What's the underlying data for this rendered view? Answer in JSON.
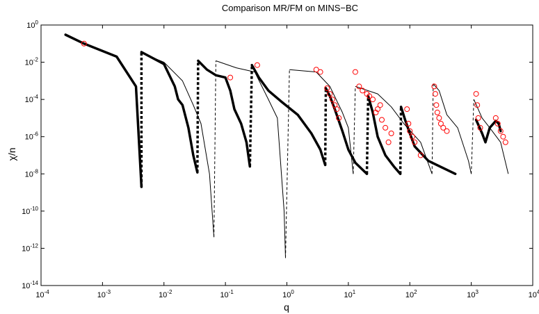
{
  "chart_data": {
    "type": "line",
    "title": "Comparison MR/FM on MINS−BC",
    "xlabel": "q",
    "ylabel": "χ/n",
    "xscale": "log",
    "yscale": "log",
    "xlim": [
      0.0001,
      10000
    ],
    "ylim": [
      1e-14,
      1
    ],
    "grid": false,
    "x_ticks": [
      {
        "v": 0.0001,
        "m": "10",
        "e": "-4"
      },
      {
        "v": 0.001,
        "m": "10",
        "e": "-3"
      },
      {
        "v": 0.01,
        "m": "10",
        "e": "-2"
      },
      {
        "v": 0.1,
        "m": "10",
        "e": "-1"
      },
      {
        "v": 1,
        "m": "10",
        "e": "0"
      },
      {
        "v": 10,
        "m": "10",
        "e": "1"
      },
      {
        "v": 100,
        "m": "10",
        "e": "2"
      },
      {
        "v": 1000,
        "m": "10",
        "e": "3"
      },
      {
        "v": 10000,
        "m": "10",
        "e": "4"
      }
    ],
    "y_ticks": [
      {
        "v": 1,
        "m": "10",
        "e": "0"
      },
      {
        "v": 0.01,
        "m": "10",
        "e": "-2"
      },
      {
        "v": 0.0001,
        "m": "10",
        "e": "-4"
      },
      {
        "v": 1e-06,
        "m": "10",
        "e": "-6"
      },
      {
        "v": 1e-08,
        "m": "10",
        "e": "-8"
      },
      {
        "v": 1e-10,
        "m": "10",
        "e": "-10"
      },
      {
        "v": 1e-12,
        "m": "10",
        "e": "-12"
      },
      {
        "v": 1e-14,
        "m": "10",
        "e": "-14"
      }
    ],
    "colors": {
      "axis": "#000000",
      "series": "#000000",
      "marker": "#ff0000"
    },
    "thick_segments": [
      [
        [
          0.00025,
          0.3
        ],
        [
          0.0005,
          0.1
        ],
        [
          0.0017,
          0.02
        ],
        [
          0.0035,
          0.0005
        ],
        [
          0.0043,
          2e-09
        ]
      ],
      [
        [
          0.0043,
          0.035
        ],
        [
          0.01,
          0.008
        ],
        [
          0.015,
          0.0005
        ],
        [
          0.017,
          0.0001
        ],
        [
          0.02,
          5e-05
        ],
        [
          0.025,
          3e-06
        ],
        [
          0.03,
          1e-07
        ],
        [
          0.035,
          1.2e-08
        ]
      ],
      [
        [
          0.036,
          0.012
        ],
        [
          0.05,
          0.004
        ],
        [
          0.07,
          0.002
        ],
        [
          0.1,
          0.0015
        ],
        [
          0.12,
          0.0003
        ],
        [
          0.14,
          3e-05
        ],
        [
          0.18,
          5e-06
        ],
        [
          0.22,
          5e-07
        ],
        [
          0.25,
          2.5e-08
        ]
      ],
      [
        [
          0.27,
          0.007
        ],
        [
          0.35,
          0.0015
        ],
        [
          0.5,
          0.0003
        ],
        [
          0.8,
          8e-05
        ],
        [
          1.5,
          1.5e-05
        ],
        [
          2.5,
          1.5e-06
        ],
        [
          3.5,
          2e-07
        ],
        [
          4.2,
          3e-08
        ]
      ],
      [
        [
          4.3,
          0.0004
        ],
        [
          5,
          0.00015
        ],
        [
          6,
          3e-05
        ],
        [
          8,
          2e-06
        ],
        [
          10,
          2e-07
        ],
        [
          13,
          4e-08
        ],
        [
          20,
          1e-08
        ]
      ],
      [
        [
          21,
          0.00015
        ],
        [
          25,
          2e-05
        ],
        [
          30,
          1e-06
        ],
        [
          40,
          1e-07
        ],
        [
          55,
          2.5e-08
        ],
        [
          70,
          1e-08
        ]
      ],
      [
        [
          72,
          4e-05
        ],
        [
          85,
          7e-06
        ],
        [
          100,
          1.5e-06
        ],
        [
          120,
          3e-07
        ],
        [
          200,
          5e-08
        ],
        [
          550,
          1e-08
        ]
      ],
      [
        [
          1200,
          8e-06
        ],
        [
          1500,
          1.5e-06
        ],
        [
          1700,
          5e-07
        ],
        [
          2000,
          3e-06
        ],
        [
          2500,
          7e-06
        ],
        [
          2800,
          5e-06
        ],
        [
          3000,
          2e-06
        ]
      ]
    ],
    "thin_segments": [
      [
        [
          0.0045,
          0.03
        ],
        [
          0.01,
          0.01
        ],
        [
          0.02,
          0.001
        ],
        [
          0.03,
          5e-05
        ],
        [
          0.04,
          5e-06
        ],
        [
          0.055,
          1e-08
        ],
        [
          0.065,
          4e-12
        ]
      ],
      [
        [
          0.07,
          0.012
        ],
        [
          0.15,
          0.005
        ],
        [
          0.3,
          0.003
        ],
        [
          0.5,
          0.0001
        ],
        [
          0.7,
          1e-05
        ],
        [
          0.9,
          1e-10
        ],
        [
          0.95,
          3e-13
        ]
      ],
      [
        [
          1.1,
          0.004
        ],
        [
          3,
          0.003
        ],
        [
          5,
          0.0005
        ],
        [
          8,
          2e-05
        ],
        [
          10,
          3e-06
        ],
        [
          12,
          1e-08
        ]
      ],
      [
        [
          13,
          0.0005
        ],
        [
          30,
          0.0002
        ],
        [
          50,
          4e-05
        ],
        [
          80,
          5e-06
        ],
        [
          150,
          5e-07
        ],
        [
          230,
          1e-08
        ]
      ],
      [
        [
          240,
          0.0007
        ],
        [
          300,
          0.0003
        ],
        [
          400,
          1.5e-05
        ],
        [
          600,
          3e-06
        ],
        [
          900,
          5e-08
        ],
        [
          1000,
          1e-08
        ]
      ],
      [
        [
          1100,
          0.0001
        ],
        [
          1500,
          1e-05
        ],
        [
          2000,
          3e-06
        ],
        [
          3000,
          5e-07
        ],
        [
          4000,
          1e-08
        ]
      ]
    ],
    "dotted_connectors": [
      [
        [
          0.0043,
          2e-09
        ],
        [
          0.0043,
          0.035
        ]
      ],
      [
        [
          0.035,
          1.2e-08
        ],
        [
          0.036,
          0.012
        ]
      ],
      [
        [
          0.25,
          2.5e-08
        ],
        [
          0.27,
          0.007
        ]
      ],
      [
        [
          4.2,
          3e-08
        ],
        [
          4.3,
          0.0004
        ]
      ],
      [
        [
          20,
          1e-08
        ],
        [
          21,
          0.00015
        ]
      ],
      [
        [
          70,
          1e-08
        ],
        [
          72,
          4e-05
        ]
      ]
    ],
    "dashed_connectors": [
      [
        [
          0.065,
          4e-12
        ],
        [
          0.07,
          0.012
        ]
      ],
      [
        [
          0.95,
          3e-13
        ],
        [
          1.1,
          0.004
        ]
      ],
      [
        [
          12,
          1e-08
        ],
        [
          13,
          0.0005
        ]
      ],
      [
        [
          230,
          1e-08
        ],
        [
          240,
          0.0007
        ]
      ],
      [
        [
          1000,
          1e-08
        ],
        [
          1100,
          0.0001
        ]
      ]
    ],
    "markers": [
      [
        0.0005,
        0.1
      ],
      [
        0.12,
        0.0015
      ],
      [
        0.33,
        0.007
      ],
      [
        3,
        0.004
      ],
      [
        3.5,
        0.003
      ],
      [
        4.5,
        0.0004
      ],
      [
        5,
        0.0002
      ],
      [
        5.5,
        0.0001
      ],
      [
        6,
        5e-05
      ],
      [
        6.5,
        3e-05
      ],
      [
        7,
        1e-05
      ],
      [
        13,
        0.003
      ],
      [
        15,
        0.0005
      ],
      [
        17,
        0.0003
      ],
      [
        20,
        0.0002
      ],
      [
        22,
        0.00015
      ],
      [
        25,
        0.0001
      ],
      [
        28,
        2e-05
      ],
      [
        30,
        3e-05
      ],
      [
        33,
        5e-05
      ],
      [
        35,
        8e-06
      ],
      [
        40,
        3e-06
      ],
      [
        45,
        5e-07
      ],
      [
        50,
        1.5e-06
      ],
      [
        90,
        3e-05
      ],
      [
        95,
        5e-06
      ],
      [
        100,
        2e-06
      ],
      [
        110,
        1e-06
      ],
      [
        120,
        5e-07
      ],
      [
        150,
        1e-07
      ],
      [
        250,
        0.0005
      ],
      [
        260,
        0.0002
      ],
      [
        270,
        5e-05
      ],
      [
        280,
        2e-05
      ],
      [
        300,
        1e-05
      ],
      [
        320,
        5e-06
      ],
      [
        350,
        3e-06
      ],
      [
        400,
        2e-06
      ],
      [
        1200,
        0.0002
      ],
      [
        1250,
        5e-05
      ],
      [
        1300,
        1e-05
      ],
      [
        1400,
        3e-06
      ],
      [
        2500,
        1e-05
      ],
      [
        2700,
        5e-06
      ],
      [
        3000,
        2e-06
      ],
      [
        3300,
        1e-06
      ],
      [
        3600,
        5e-07
      ]
    ]
  }
}
